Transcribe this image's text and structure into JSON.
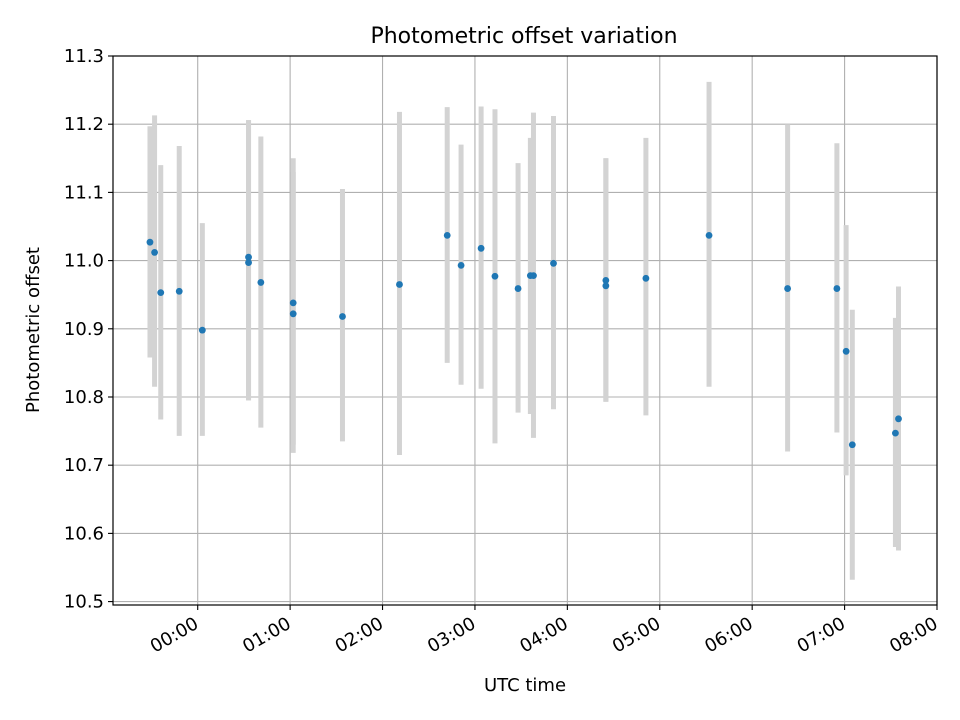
{
  "chart_data": {
    "type": "scatter",
    "title": "Photometric offset variation",
    "xlabel": "UTC time",
    "ylabel": "Photometric offset",
    "x_tick_labels": [
      "00:00",
      "01:00",
      "02:00",
      "03:00",
      "04:00",
      "05:00",
      "06:00",
      "07:00",
      "08:00"
    ],
    "y_tick_labels": [
      "10.5",
      "10.6",
      "10.7",
      "10.8",
      "10.9",
      "11.0",
      "11.1",
      "11.2",
      "11.3"
    ],
    "x_ticks": [
      "00:00",
      "01:00",
      "02:00",
      "03:00",
      "04:00",
      "05:00",
      "06:00",
      "07:00",
      "08:00"
    ],
    "y_ticks": [
      10.5,
      10.6,
      10.7,
      10.8,
      10.9,
      11.0,
      11.1,
      11.2,
      11.3
    ],
    "xlim": [
      "-00:55",
      "08:00"
    ],
    "ylim": [
      10.495,
      11.3
    ],
    "grid": true,
    "marker_color": "#1f77b4",
    "errorbar_color": "#d3d3d3",
    "points": [
      {
        "x": "-00:31",
        "y": 11.027,
        "ylow": 10.858,
        "yhigh": 11.197
      },
      {
        "x": "-00:28",
        "y": 11.012,
        "ylow": 10.815,
        "yhigh": 11.213
      },
      {
        "x": "-00:24",
        "y": 10.953,
        "ylow": 10.767,
        "yhigh": 11.14
      },
      {
        "x": "-00:12",
        "y": 10.955,
        "ylow": 10.743,
        "yhigh": 11.168
      },
      {
        "x": "00:03",
        "y": 10.898,
        "ylow": 10.743,
        "yhigh": 11.055
      },
      {
        "x": "00:33",
        "y": 11.005,
        "ylow": 10.795,
        "yhigh": 11.206
      },
      {
        "x": "00:33",
        "y": 10.997,
        "ylow": 10.795,
        "yhigh": 11.206
      },
      {
        "x": "00:41",
        "y": 10.968,
        "ylow": 10.755,
        "yhigh": 11.182
      },
      {
        "x": "01:02",
        "y": 10.938,
        "ylow": 10.73,
        "yhigh": 11.15
      },
      {
        "x": "01:02",
        "y": 10.922,
        "ylow": 10.718,
        "yhigh": 11.13
      },
      {
        "x": "01:34",
        "y": 10.918,
        "ylow": 10.735,
        "yhigh": 11.105
      },
      {
        "x": "02:11",
        "y": 10.965,
        "ylow": 10.715,
        "yhigh": 11.218
      },
      {
        "x": "02:42",
        "y": 11.037,
        "ylow": 10.85,
        "yhigh": 11.225
      },
      {
        "x": "02:51",
        "y": 10.993,
        "ylow": 10.818,
        "yhigh": 11.17
      },
      {
        "x": "03:04",
        "y": 11.018,
        "ylow": 10.812,
        "yhigh": 11.226
      },
      {
        "x": "03:13",
        "y": 10.977,
        "ylow": 10.732,
        "yhigh": 11.222
      },
      {
        "x": "03:28",
        "y": 10.959,
        "ylow": 10.777,
        "yhigh": 11.143
      },
      {
        "x": "03:36",
        "y": 10.978,
        "ylow": 10.775,
        "yhigh": 11.18
      },
      {
        "x": "03:38",
        "y": 10.978,
        "ylow": 10.74,
        "yhigh": 11.217
      },
      {
        "x": "03:51",
        "y": 10.996,
        "ylow": 10.782,
        "yhigh": 11.212
      },
      {
        "x": "04:25",
        "y": 10.971,
        "ylow": 10.793,
        "yhigh": 11.15
      },
      {
        "x": "04:25",
        "y": 10.963,
        "ylow": 10.793,
        "yhigh": 11.15
      },
      {
        "x": "04:51",
        "y": 10.974,
        "ylow": 10.773,
        "yhigh": 11.18
      },
      {
        "x": "05:32",
        "y": 11.037,
        "ylow": 10.815,
        "yhigh": 11.262
      },
      {
        "x": "06:23",
        "y": 10.959,
        "ylow": 10.72,
        "yhigh": 11.2
      },
      {
        "x": "06:55",
        "y": 10.959,
        "ylow": 10.748,
        "yhigh": 11.172
      },
      {
        "x": "07:01",
        "y": 10.867,
        "ylow": 10.685,
        "yhigh": 11.052
      },
      {
        "x": "07:05",
        "y": 10.73,
        "ylow": 10.532,
        "yhigh": 10.928
      },
      {
        "x": "07:33",
        "y": 10.747,
        "ylow": 10.58,
        "yhigh": 10.916
      },
      {
        "x": "07:35",
        "y": 10.768,
        "ylow": 10.575,
        "yhigh": 10.962
      }
    ]
  }
}
